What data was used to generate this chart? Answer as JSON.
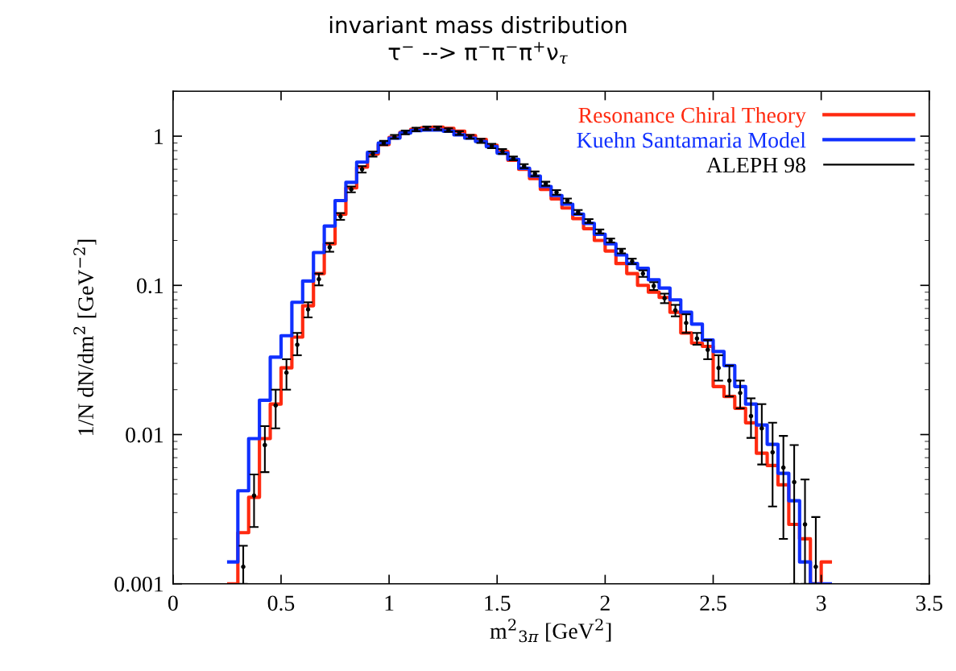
{
  "chart_data": {
    "type": "histogram",
    "title": "invariant mass distribution",
    "subtitle": "τ$^{−}$ --> π$^{−}$π$^{−}$π$^{+}$ν$_{τ}$",
    "xlabel": "m$^{2}$$_{3π}$ [GeV$^{2}$]",
    "ylabel": "1/N dN/dm$^{2}$ [GeV$^{−2}$]",
    "bins": [
      0.25,
      0.3,
      0.35,
      0.4,
      0.45,
      0.5,
      0.55,
      0.6,
      0.65,
      0.7,
      0.75,
      0.8,
      0.85,
      0.9,
      0.95,
      1.0,
      1.05,
      1.1,
      1.15,
      1.2,
      1.25,
      1.3,
      1.35,
      1.4,
      1.45,
      1.5,
      1.55,
      1.6,
      1.65,
      1.7,
      1.75,
      1.8,
      1.85,
      1.9,
      1.95,
      2.0,
      2.05,
      2.1,
      2.15,
      2.2,
      2.25,
      2.3,
      2.35,
      2.4,
      2.45,
      2.5,
      2.55,
      2.6,
      2.65,
      2.7,
      2.75,
      2.8,
      2.85,
      2.9,
      2.95,
      3.0,
      3.05
    ],
    "series": [
      {
        "name": "Resonance Chiral Theory",
        "color": "#ff2a10",
        "values": [
          0.001,
          0.0022,
          0.0038,
          0.0094,
          0.016,
          0.028,
          0.045,
          0.073,
          0.12,
          0.19,
          0.3,
          0.45,
          0.62,
          0.76,
          0.88,
          0.98,
          1.06,
          1.11,
          1.14,
          1.15,
          1.13,
          1.08,
          1.01,
          0.95,
          0.87,
          0.79,
          0.69,
          0.6,
          0.52,
          0.44,
          0.38,
          0.33,
          0.28,
          0.24,
          0.2,
          0.17,
          0.14,
          0.12,
          0.1,
          0.09,
          0.083,
          0.066,
          0.048,
          0.041,
          0.039,
          0.021,
          0.018,
          0.015,
          0.012,
          0.0075,
          0.0062,
          0.0046,
          0.0025,
          0.002,
          0.001,
          0.0014
        ]
      },
      {
        "name": "Kuehn Santamaria Model",
        "color": "#1030ff",
        "values": [
          0.0014,
          0.0042,
          0.0094,
          0.017,
          0.033,
          0.046,
          0.077,
          0.107,
          0.166,
          0.25,
          0.37,
          0.49,
          0.67,
          0.78,
          0.9,
          0.97,
          1.05,
          1.09,
          1.1,
          1.1,
          1.08,
          1.02,
          0.97,
          0.92,
          0.85,
          0.77,
          0.7,
          0.61,
          0.54,
          0.46,
          0.4,
          0.35,
          0.3,
          0.26,
          0.22,
          0.19,
          0.16,
          0.14,
          0.13,
          0.109,
          0.096,
          0.08,
          0.066,
          0.055,
          0.043,
          0.036,
          0.029,
          0.021,
          0.016,
          0.0116,
          0.0086,
          0.0055,
          0.0036,
          0.0014,
          0.001,
          0.001
        ]
      },
      {
        "name": "ALEPH 98",
        "type": "scatter",
        "color": "#000000",
        "x": [
          0.325,
          0.375,
          0.425,
          0.475,
          0.525,
          0.575,
          0.625,
          0.675,
          0.725,
          0.775,
          0.825,
          0.875,
          0.925,
          0.975,
          1.025,
          1.075,
          1.125,
          1.175,
          1.225,
          1.275,
          1.325,
          1.375,
          1.425,
          1.475,
          1.525,
          1.575,
          1.625,
          1.675,
          1.725,
          1.775,
          1.825,
          1.875,
          1.925,
          1.975,
          2.025,
          2.075,
          2.125,
          2.175,
          2.225,
          2.275,
          2.325,
          2.375,
          2.425,
          2.475,
          2.525,
          2.575,
          2.625,
          2.675,
          2.725,
          2.775,
          2.825,
          2.875,
          2.925,
          2.975
        ],
        "values": [
          0.0013,
          0.0039,
          0.0085,
          0.0157,
          0.026,
          0.04,
          0.069,
          0.11,
          0.18,
          0.29,
          0.44,
          0.6,
          0.76,
          0.9,
          0.99,
          1.06,
          1.11,
          1.13,
          1.13,
          1.1,
          1.05,
          0.99,
          0.93,
          0.86,
          0.79,
          0.71,
          0.63,
          0.56,
          0.48,
          0.42,
          0.37,
          0.31,
          0.27,
          0.23,
          0.2,
          0.17,
          0.145,
          0.12,
          0.099,
          0.082,
          0.068,
          0.056,
          0.044,
          0.037,
          0.028,
          0.023,
          0.019,
          0.0133,
          0.011,
          0.0076,
          0.006,
          0.0048,
          0.0025,
          0.0013
        ],
        "errors": [
          [
            0.001,
            0.0018
          ],
          [
            0.0024,
            0.0054
          ],
          [
            0.0056,
            0.0114
          ],
          [
            0.011,
            0.02
          ],
          [
            0.02,
            0.032
          ],
          [
            0.034,
            0.048
          ],
          [
            0.061,
            0.077
          ],
          0.01,
          0.012,
          0.015,
          0.02,
          0.03,
          0.03,
          0.03,
          0.03,
          0.03,
          0.03,
          0.03,
          0.03,
          0.03,
          0.03,
          0.03,
          0.03,
          0.03,
          0.03,
          0.02,
          0.02,
          0.02,
          0.015,
          0.015,
          0.012,
          0.01,
          0.008,
          0.007,
          0.006,
          0.006,
          0.006,
          0.006,
          0.006,
          0.006,
          0.006,
          [
            0.048,
            0.064
          ],
          [
            0.04,
            0.048
          ],
          [
            0.032,
            0.043
          ],
          [
            0.023,
            0.034
          ],
          [
            0.018,
            0.029
          ],
          [
            0.015,
            0.023
          ],
          [
            0.0095,
            0.0175
          ],
          [
            0.0063,
            0.016
          ],
          [
            0.0033,
            0.012
          ],
          [
            0.002,
            0.0098
          ],
          [
            0.001,
            0.0085
          ],
          [
            0.001,
            0.005
          ],
          [
            0.001,
            0.0028
          ]
        ]
      }
    ],
    "log": "y",
    "xlim": [
      0,
      3.5
    ],
    "ylim": [
      0.001,
      2
    ],
    "xticks": [
      0,
      0.5,
      1,
      1.5,
      2,
      2.5,
      3,
      3.5
    ],
    "yticks": [
      0.001,
      0.01,
      0.1,
      1
    ],
    "legend": "top right",
    "grid": false
  }
}
